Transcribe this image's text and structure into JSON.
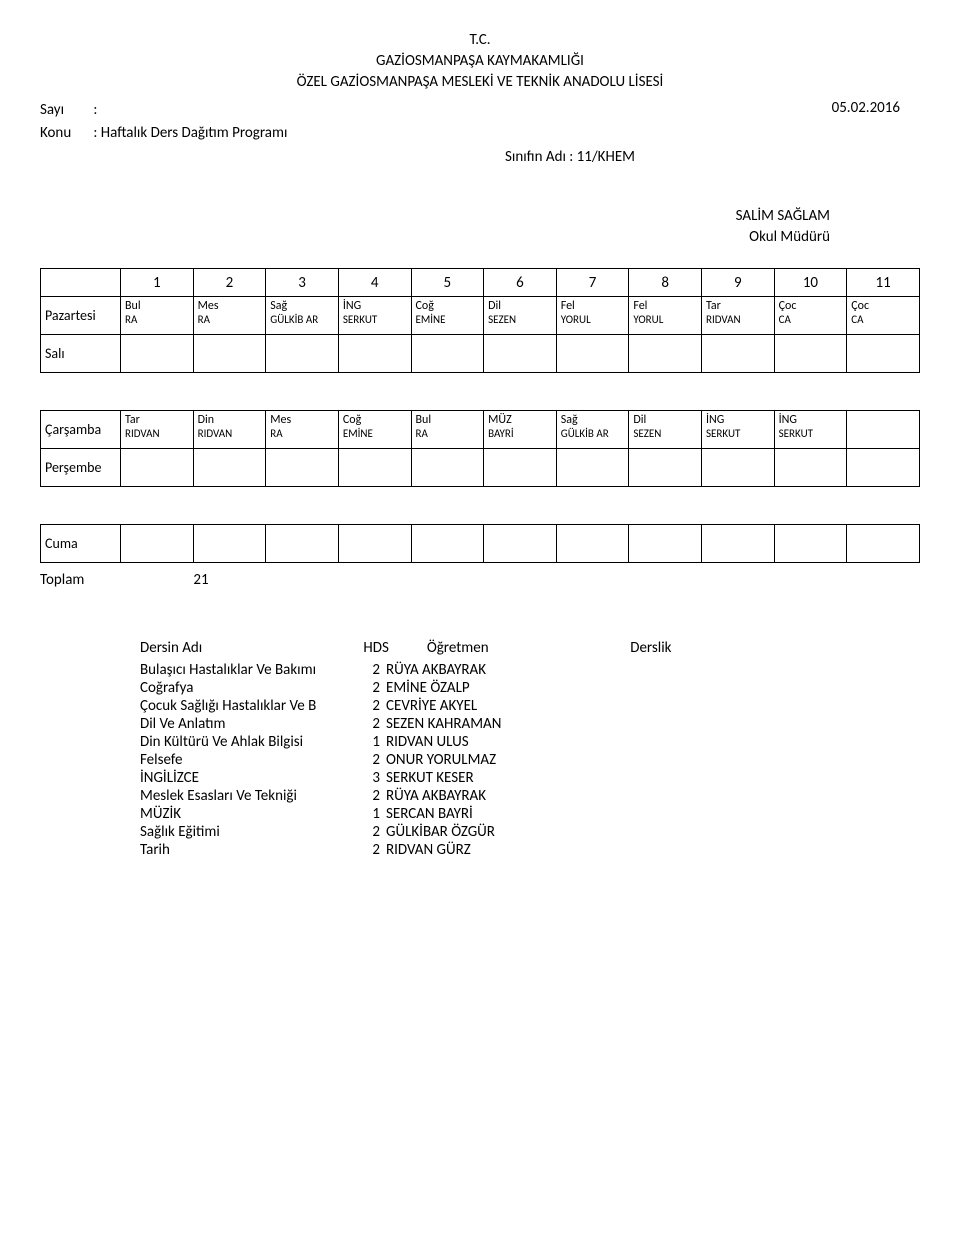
{
  "header": {
    "line1": "T.C.",
    "line2": "GAZİOSMANPAŞA KAYMAKAMLIĞI",
    "line3": "ÖZEL GAZİOSMANPAŞA  MESLEKİ VE TEKNİK ANADOLU  LİSESİ",
    "date": "05.02.2016"
  },
  "meta": {
    "sayi_label": "Sayı",
    "sayi_value": ":",
    "konu_label": "Konu",
    "konu_value": ": Haftalık Ders Dağıtım Programı",
    "class_title": "Sınıfın Adı : 11/KHEM"
  },
  "signature": {
    "name": "SALİM SAĞLAM",
    "title": "Okul Müdürü"
  },
  "periods": [
    "1",
    "2",
    "3",
    "4",
    "5",
    "6",
    "7",
    "8",
    "9",
    "10",
    "11"
  ],
  "days": [
    {
      "name": "Pazartesi",
      "slots": [
        {
          "c": "Bul",
          "t": "RA"
        },
        {
          "c": "Mes",
          "t": "RA"
        },
        {
          "c": "Sağ",
          "t": "GÜLKİB AR"
        },
        {
          "c": "İNG",
          "t": "SERKUT"
        },
        {
          "c": "Coğ",
          "t": "EMİNE"
        },
        {
          "c": "Dil",
          "t": "SEZEN"
        },
        {
          "c": "Fel",
          "t": "YORUL"
        },
        {
          "c": "Fel",
          "t": "YORUL"
        },
        {
          "c": "Tar",
          "t": "RIDVAN"
        },
        {
          "c": "Çoc",
          "t": "CA"
        },
        {
          "c": "Çoc",
          "t": "CA"
        }
      ]
    },
    {
      "name": "Salı",
      "slots": [
        {},
        {},
        {},
        {},
        {},
        {},
        {},
        {},
        {},
        {},
        {}
      ]
    },
    {
      "name": "Çarşamba",
      "slots": [
        {
          "c": "Tar",
          "t": "RIDVAN"
        },
        {
          "c": "Din",
          "t": "RIDVAN"
        },
        {
          "c": "Mes",
          "t": "RA"
        },
        {
          "c": "Coğ",
          "t": "EMİNE"
        },
        {
          "c": "Bul",
          "t": "RA"
        },
        {
          "c": "MÜZ",
          "t": "BAYRİ"
        },
        {
          "c": "Sağ",
          "t": "GÜLKİB AR"
        },
        {
          "c": "Dil",
          "t": "SEZEN"
        },
        {
          "c": "İNG",
          "t": "SERKUT"
        },
        {
          "c": "İNG",
          "t": "SERKUT"
        },
        {}
      ]
    },
    {
      "name": "Perşembe",
      "slots": [
        {},
        {},
        {},
        {},
        {},
        {},
        {},
        {},
        {},
        {},
        {}
      ]
    },
    {
      "name": "Cuma",
      "slots": [
        {},
        {},
        {},
        {},
        {},
        {},
        {},
        {},
        {},
        {},
        {}
      ]
    }
  ],
  "total": {
    "label": "Toplam",
    "value": "21"
  },
  "course_list": {
    "headers": {
      "name": "Dersin Adı",
      "hds": "HDS",
      "teacher": "Öğretmen",
      "room": "Derslik"
    },
    "rows": [
      {
        "name": "Bulaşıcı Hastalıklar Ve Bakımı",
        "hds": "2",
        "teacher": "RÜYA AKBAYRAK"
      },
      {
        "name": "Coğrafya",
        "hds": "2",
        "teacher": "EMİNE ÖZALP"
      },
      {
        "name": "Çocuk Sağlığı Hastalıklar Ve B",
        "hds": "2",
        "teacher": "CEVRİYE AKYEL"
      },
      {
        "name": "Dil Ve Anlatım",
        "hds": "2",
        "teacher": "SEZEN KAHRAMAN"
      },
      {
        "name": "Din Kültürü Ve Ahlak Bilgisi",
        "hds": "1",
        "teacher": "RIDVAN ULUS"
      },
      {
        "name": "Felsefe",
        "hds": "2",
        "teacher": "ONUR YORULMAZ"
      },
      {
        "name": "İNGİLİZCE",
        "hds": "3",
        "teacher": "SERKUT KESER"
      },
      {
        "name": "Meslek Esasları Ve Tekniği",
        "hds": "2",
        "teacher": "RÜYA AKBAYRAK"
      },
      {
        "name": "MÜZİK",
        "hds": "1",
        "teacher": "SERCAN BAYRİ"
      },
      {
        "name": "Sağlık Eğitimi",
        "hds": "2",
        "teacher": "GÜLKİBAR ÖZGÜR"
      },
      {
        "name": "Tarih",
        "hds": "2",
        "teacher": "RIDVAN GÜRZ"
      }
    ]
  }
}
